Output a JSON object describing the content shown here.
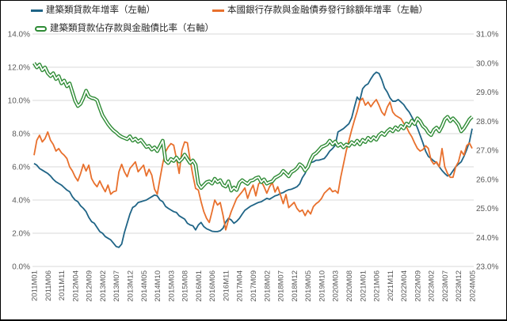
{
  "legend": {
    "series1": "建築類貸款年增率（左軸）",
    "series2": "本國銀行存款與金融債券發行餘額年增率（左軸）",
    "series3": "建築類貸款佔存款與金融債比率（右軸）"
  },
  "colors": {
    "series1": "#1f6486",
    "series2": "#e8702d",
    "series3": "#2e8b35",
    "grid": "#d9d9d9",
    "axis_text": "#595959"
  },
  "chart_data": {
    "type": "line",
    "title": "",
    "x_start": "2011M01",
    "x_end": "2024M05",
    "x_step_months": 1,
    "x_tick_labels": [
      "2011M01",
      "2011M06",
      "2011M11",
      "2012M04",
      "2012M09",
      "2013M02",
      "2013M07",
      "2013M12",
      "2014M05",
      "2014M10",
      "2015M03",
      "2015M08",
      "2016M01",
      "2016M06",
      "2016M11",
      "2017M04",
      "2017M09",
      "2018M02",
      "2018M07",
      "2018M12",
      "2019M05",
      "2019M10",
      "2020M03",
      "2020M08",
      "2021M01",
      "2021M06",
      "2021M11",
      "2022M04",
      "2022M09",
      "2023M02",
      "2023M07",
      "2023M12",
      "2024M05"
    ],
    "left_axis": {
      "min": 0,
      "max": 14,
      "step": 2,
      "tick_labels": [
        "0.0%",
        "2.0%",
        "4.0%",
        "6.0%",
        "8.0%",
        "10.0%",
        "12.0%",
        "14.0%"
      ]
    },
    "right_axis": {
      "min": 23,
      "max": 31,
      "step": 1,
      "tick_labels": [
        "23.0%",
        "24.0%",
        "25.0%",
        "26.0%",
        "27.0%",
        "28.0%",
        "29.0%",
        "30.0%",
        "31.0%"
      ]
    },
    "grid": true,
    "legend_position": "top",
    "series": [
      {
        "name": "建築類貸款年增率（左軸）",
        "axis": "left",
        "color": "#1f6486",
        "style": "solid",
        "values": [
          6.2,
          6.1,
          5.9,
          5.8,
          5.7,
          5.6,
          5.45,
          5.25,
          5.1,
          5.0,
          4.9,
          4.75,
          4.6,
          4.5,
          4.2,
          4.0,
          3.9,
          3.65,
          3.5,
          3.3,
          2.95,
          2.7,
          2.6,
          2.35,
          2.1,
          2.0,
          1.8,
          1.7,
          1.6,
          1.4,
          1.2,
          1.15,
          1.35,
          2.05,
          2.6,
          3.15,
          3.55,
          3.65,
          3.85,
          3.9,
          3.95,
          4.0,
          4.1,
          4.2,
          4.3,
          4.25,
          4.0,
          3.9,
          3.62,
          3.5,
          3.4,
          3.3,
          3.25,
          3.05,
          2.95,
          2.85,
          2.6,
          2.5,
          2.45,
          2.2,
          2.5,
          2.65,
          2.4,
          2.27,
          2.2,
          2.12,
          2.1,
          2.1,
          2.15,
          2.3,
          2.67,
          2.9,
          2.8,
          2.6,
          2.72,
          2.9,
          3.15,
          3.38,
          3.5,
          3.62,
          3.7,
          3.78,
          3.86,
          3.9,
          4.0,
          4.1,
          4.05,
          4.15,
          4.25,
          4.3,
          4.4,
          4.45,
          4.55,
          4.62,
          4.65,
          4.72,
          4.8,
          4.97,
          5.35,
          5.6,
          6.05,
          6.25,
          6.3,
          6.4,
          6.4,
          6.45,
          6.5,
          6.7,
          6.95,
          7.1,
          7.3,
          8.1,
          8.2,
          8.3,
          8.45,
          8.6,
          8.95,
          9.6,
          10.2,
          10.0,
          10.7,
          10.9,
          11.0,
          11.3,
          11.55,
          11.7,
          11.62,
          11.25,
          10.75,
          10.5,
          10.15,
          9.95,
          9.95,
          10.05,
          9.9,
          9.75,
          9.5,
          9.3,
          9.0,
          8.7,
          8.35,
          7.9,
          7.45,
          6.95,
          6.63,
          6.5,
          6.35,
          6.25,
          6.0,
          5.78,
          5.6,
          5.45,
          5.52,
          5.76,
          6.0,
          6.16,
          6.3,
          6.63,
          7.03,
          7.5,
          8.3
        ]
      },
      {
        "name": "本國銀行存款與金融債券發行餘額年增率（左軸）",
        "axis": "left",
        "color": "#e8702d",
        "style": "solid",
        "values": [
          6.7,
          7.6,
          7.9,
          7.5,
          7.7,
          8.1,
          7.6,
          7.35,
          6.95,
          7.1,
          6.85,
          6.7,
          6.5,
          6.0,
          5.75,
          5.4,
          5.15,
          5.6,
          6.15,
          5.75,
          6.1,
          5.3,
          5.0,
          4.8,
          5.15,
          4.8,
          4.5,
          4.9,
          4.35,
          4.5,
          4.55,
          5.7,
          6.15,
          5.7,
          5.4,
          5.9,
          6.1,
          6.3,
          5.7,
          5.9,
          6.1,
          5.45,
          5.85,
          5.5,
          4.65,
          4.35,
          5.3,
          6.2,
          6.9,
          7.2,
          7.4,
          7.3,
          6.5,
          5.6,
          7.0,
          7.5,
          7.45,
          6.4,
          5.5,
          4.7,
          4.6,
          3.9,
          3.3,
          2.9,
          2.65,
          3.3,
          4.0,
          3.7,
          3.85,
          3.1,
          2.2,
          2.8,
          3.3,
          3.7,
          4.1,
          4.3,
          4.5,
          4.73,
          4.1,
          4.57,
          4.9,
          4.25,
          4.97,
          5.13,
          4.8,
          4.41,
          4.8,
          5.05,
          4.48,
          4.8,
          4.3,
          3.78,
          4.33,
          3.54,
          3.7,
          3.86,
          3.5,
          3.3,
          3.4,
          3.06,
          3.38,
          3.16,
          3.6,
          3.78,
          3.9,
          4.1,
          4.41,
          4.57,
          4.73,
          4.5,
          4.57,
          4.41,
          5.37,
          6.16,
          6.95,
          7.59,
          8.22,
          8.8,
          9.33,
          9.97,
          10.13,
          9.71,
          9.9,
          9.62,
          9.86,
          10.05,
          9.7,
          9.3,
          9.1,
          9.6,
          9.9,
          9.3,
          9.1,
          9.0,
          8.9,
          8.62,
          8.4,
          8.06,
          7.8,
          7.43,
          7.11,
          6.95,
          7.03,
          7.27,
          7.11,
          6.4,
          6.16,
          6.3,
          6.0,
          7.1,
          6.0,
          5.6,
          5.37,
          5.37,
          6.0,
          6.3,
          6.95,
          6.7,
          7.27,
          7.43,
          7.11
        ]
      },
      {
        "name": "建築類貸款佔存款與金融債比率（右軸）",
        "axis": "right",
        "color": "#2e8b35",
        "style": "outlined",
        "values": [
          30.0,
          29.85,
          29.95,
          29.75,
          29.85,
          29.65,
          29.55,
          29.65,
          29.45,
          29.55,
          29.3,
          29.4,
          29.2,
          29.3,
          29.0,
          28.7,
          28.52,
          28.6,
          28.8,
          29.05,
          28.85,
          28.8,
          28.78,
          28.72,
          28.45,
          28.2,
          28.05,
          27.9,
          27.78,
          27.68,
          27.61,
          27.52,
          27.46,
          27.42,
          27.38,
          27.48,
          27.33,
          27.4,
          27.29,
          27.36,
          27.24,
          27.11,
          27.15,
          27.02,
          27.1,
          26.97,
          27.15,
          27.33,
          26.65,
          26.56,
          26.7,
          26.63,
          26.75,
          26.61,
          26.7,
          26.85,
          26.7,
          26.56,
          26.65,
          26.5,
          25.85,
          25.7,
          25.8,
          25.9,
          25.93,
          25.85,
          26.02,
          25.9,
          25.97,
          25.8,
          25.75,
          25.93,
          25.61,
          25.72,
          25.63,
          25.88,
          25.97,
          25.9,
          25.84,
          25.95,
          25.97,
          26.04,
          26.07,
          25.9,
          26.0,
          25.85,
          25.9,
          25.93,
          26.05,
          26.1,
          26.16,
          26.29,
          26.2,
          26.1,
          26.25,
          26.3,
          26.38,
          26.52,
          26.45,
          26.3,
          26.42,
          26.66,
          26.84,
          26.9,
          27.0,
          27.11,
          27.15,
          27.2,
          27.33,
          27.2,
          27.3,
          27.15,
          27.22,
          27.1,
          27.2,
          27.15,
          27.28,
          27.2,
          27.33,
          27.2,
          27.36,
          27.28,
          27.43,
          27.33,
          27.45,
          27.36,
          27.52,
          27.6,
          27.52,
          27.65,
          27.73,
          27.65,
          27.79,
          27.7,
          27.84,
          27.75,
          27.92,
          27.84,
          28.02,
          27.9,
          28.1,
          28.0,
          27.83,
          27.75,
          27.6,
          27.52,
          27.7,
          27.78,
          27.65,
          27.83,
          28.06,
          28.15,
          28.0,
          28.1,
          28.0,
          27.88,
          27.65,
          27.75,
          27.9,
          28.06,
          28.15
        ]
      }
    ]
  }
}
